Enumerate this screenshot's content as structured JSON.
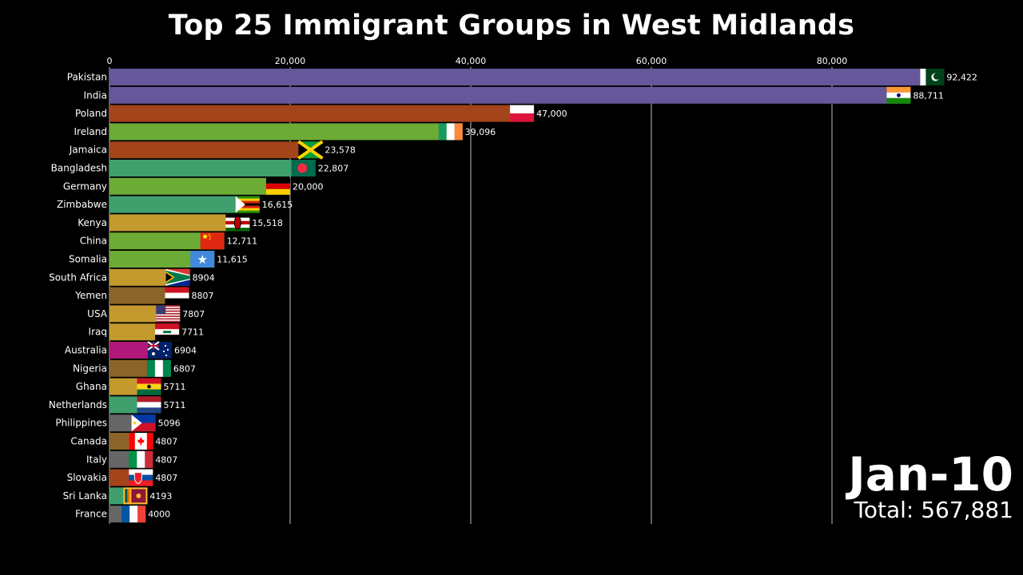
{
  "chart_data": {
    "type": "bar",
    "orientation": "horizontal",
    "title": "Top 25 Immigrant Groups in West Midlands",
    "xlim": [
      0,
      100000
    ],
    "xticks": [
      0,
      20000,
      40000,
      60000,
      80000
    ],
    "xtick_labels": [
      "0",
      "20,000",
      "40,000",
      "60,000",
      "80,000"
    ],
    "grid": true,
    "categories": [
      "Pakistan",
      "India",
      "Poland",
      "Ireland",
      "Jamaica",
      "Bangladesh",
      "Germany",
      "Zimbabwe",
      "Kenya",
      "China",
      "Somalia",
      "South Africa",
      "Yemen",
      "USA",
      "Iraq",
      "Australia",
      "Nigeria",
      "Ghana",
      "Netherlands",
      "Philippines",
      "Canada",
      "Italy",
      "Slovakia",
      "Sri Lanka",
      "France"
    ],
    "values": [
      92422,
      88711,
      47000,
      39096,
      23578,
      22807,
      20000,
      16615,
      15518,
      12711,
      11615,
      8904,
      8807,
      7807,
      7711,
      6904,
      6807,
      5711,
      5711,
      5096,
      4807,
      4807,
      4807,
      4193,
      4000
    ],
    "value_labels": [
      "92,422",
      "88,711",
      "47,000",
      "39,096",
      "23,578",
      "22,807",
      "20,000",
      "16,615",
      "15,518",
      "12,711",
      "11,615",
      "8904",
      "8807",
      "7807",
      "7711",
      "6904",
      "6807",
      "5711",
      "5711",
      "5096",
      "4807",
      "4807",
      "4807",
      "4193",
      "4000"
    ],
    "bar_colors": [
      "#66579a",
      "#66579a",
      "#a3441a",
      "#6cab35",
      "#a3441a",
      "#3fa06e",
      "#6cab35",
      "#3fa06e",
      "#c49a2e",
      "#6cab35",
      "#6cab35",
      "#c49a2e",
      "#8a6428",
      "#c49a2e",
      "#c49a2e",
      "#b0187a",
      "#8a6428",
      "#c49a2e",
      "#3fa06e",
      "#666666",
      "#8a6428",
      "#666666",
      "#a3441a",
      "#3fa06e",
      "#666666"
    ],
    "flags": [
      "pakistan",
      "india",
      "poland",
      "ireland",
      "jamaica",
      "bangladesh",
      "germany",
      "zimbabwe",
      "kenya",
      "china",
      "somalia",
      "south-africa",
      "yemen",
      "usa",
      "iraq",
      "australia",
      "nigeria",
      "ghana",
      "netherlands",
      "philippines",
      "canada",
      "italy",
      "slovakia",
      "sri-lanka",
      "france"
    ],
    "period_label": "Jan-10",
    "total_label": "Total: 567,881"
  }
}
